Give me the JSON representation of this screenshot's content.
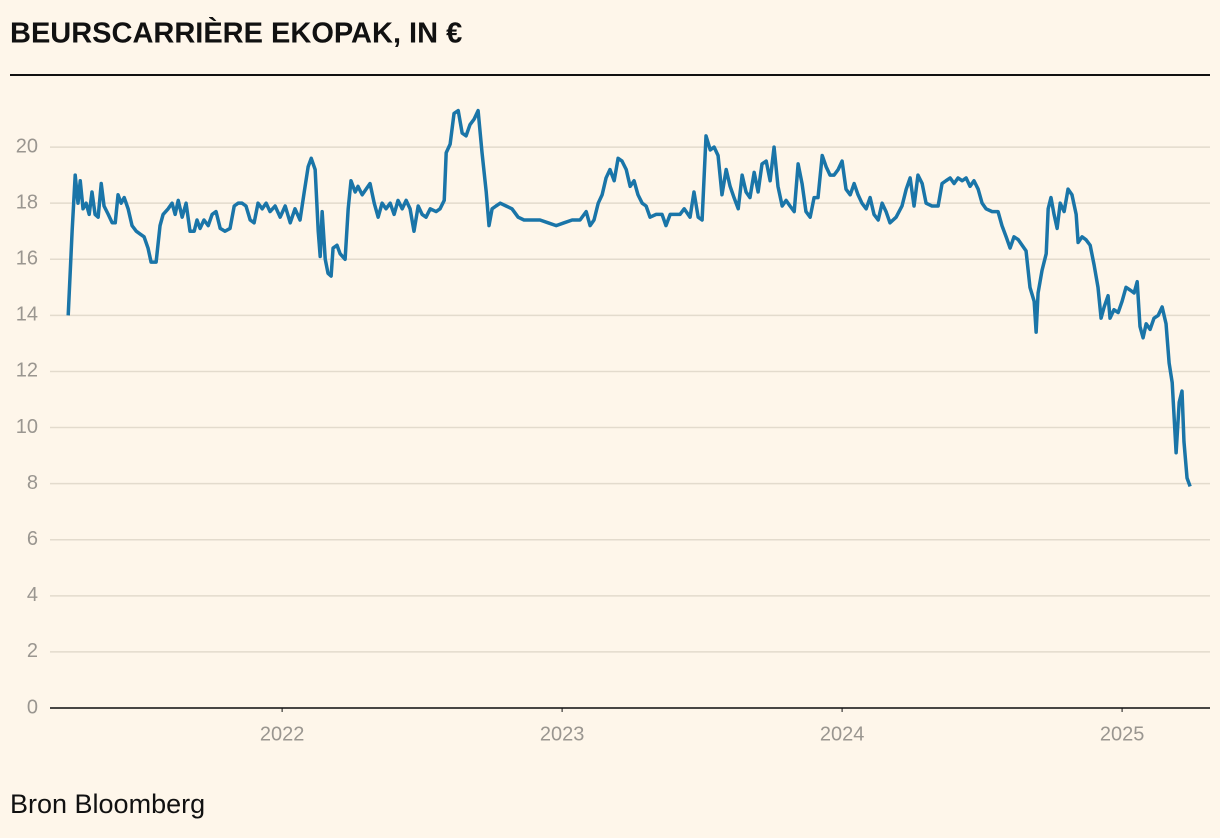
{
  "chart_data": {
    "type": "line",
    "title": "BEURSCARRIÈRE EKOPAK, IN €",
    "source": "Bron Bloomberg",
    "xlim": [
      2021.171,
      2025.314
    ],
    "xticks": [
      2022,
      2023,
      2024,
      2025
    ],
    "ylim": [
      0,
      22
    ],
    "yticks": [
      0,
      2,
      4,
      6,
      8,
      10,
      12,
      14,
      16,
      18,
      20
    ],
    "grid": true,
    "x": [
      2021.236,
      2021.25,
      2021.261,
      2021.271,
      2021.279,
      2021.289,
      2021.3,
      2021.311,
      2021.321,
      2021.332,
      2021.343,
      2021.354,
      2021.364,
      2021.379,
      2021.393,
      2021.404,
      2021.414,
      2021.425,
      2021.436,
      2021.45,
      2021.464,
      2021.479,
      2021.493,
      2021.507,
      2021.521,
      2021.532,
      2021.55,
      2021.564,
      2021.575,
      2021.593,
      2021.607,
      2021.618,
      2021.629,
      2021.643,
      2021.657,
      2021.671,
      2021.686,
      2021.696,
      2021.707,
      2021.721,
      2021.736,
      2021.75,
      2021.764,
      2021.779,
      2021.796,
      2021.814,
      2021.829,
      2021.843,
      2021.857,
      2021.871,
      2021.886,
      2021.9,
      2021.914,
      2021.929,
      2021.943,
      2021.957,
      2021.975,
      2021.993,
      2022.011,
      2022.029,
      2022.046,
      2022.064,
      2022.079,
      2022.093,
      2022.104,
      2022.118,
      2022.129,
      2022.136,
      2022.143,
      2022.154,
      2022.164,
      2022.175,
      2022.182,
      2022.196,
      2022.207,
      2022.225,
      2022.236,
      2022.246,
      2022.261,
      2022.271,
      2022.286,
      2022.3,
      2022.314,
      2022.329,
      2022.343,
      2022.357,
      2022.371,
      2022.386,
      2022.4,
      2022.414,
      2022.429,
      2022.443,
      2022.457,
      2022.471,
      2022.486,
      2022.5,
      2022.514,
      2022.529,
      2022.55,
      2022.564,
      2022.579,
      2022.586,
      2022.6,
      2022.614,
      2022.629,
      2022.643,
      2022.657,
      2022.671,
      2022.686,
      2022.7,
      2022.714,
      2022.729,
      2022.739,
      2022.75,
      2022.764,
      2022.779,
      2022.8,
      2022.821,
      2022.843,
      2022.864,
      2022.893,
      2022.921,
      2022.95,
      2022.979,
      2023.007,
      2023.036,
      2023.064,
      2023.086,
      2023.1,
      2023.114,
      2023.129,
      2023.143,
      2023.157,
      2023.171,
      2023.186,
      2023.2,
      2023.214,
      2023.229,
      2023.243,
      2023.257,
      2023.271,
      2023.286,
      2023.3,
      2023.314,
      2023.336,
      2023.357,
      2023.371,
      2023.386,
      2023.407,
      2023.421,
      2023.436,
      2023.457,
      2023.471,
      2023.486,
      2023.5,
      2023.514,
      2023.529,
      2023.543,
      2023.557,
      2023.571,
      2023.586,
      2023.6,
      2023.614,
      2023.629,
      2023.643,
      2023.657,
      2023.671,
      2023.686,
      2023.7,
      2023.714,
      2023.729,
      2023.743,
      2023.757,
      2023.771,
      2023.786,
      2023.8,
      2023.814,
      2023.829,
      2023.843,
      2023.857,
      2023.871,
      2023.886,
      2023.9,
      2023.914,
      2023.929,
      2023.943,
      2023.957,
      2023.971,
      2023.986,
      2024.0,
      2024.014,
      2024.029,
      2024.043,
      2024.057,
      2024.071,
      2024.086,
      2024.1,
      2024.114,
      2024.129,
      2024.143,
      2024.157,
      2024.171,
      2024.193,
      2024.214,
      2024.229,
      2024.243,
      2024.257,
      2024.271,
      2024.286,
      2024.3,
      2024.321,
      2024.343,
      2024.357,
      2024.371,
      2024.386,
      2024.4,
      2024.414,
      2024.429,
      2024.443,
      2024.457,
      2024.471,
      2024.486,
      2024.5,
      2024.514,
      2024.536,
      2024.557,
      2024.571,
      2024.586,
      2024.6,
      2024.614,
      2024.629,
      2024.643,
      2024.657,
      2024.671,
      2024.686,
      2024.693,
      2024.7,
      2024.714,
      2024.729,
      2024.736,
      2024.746,
      2024.757,
      2024.768,
      2024.779,
      2024.793,
      2024.807,
      2024.821,
      2024.836,
      2024.843,
      2024.857,
      2024.871,
      2024.886,
      2024.9,
      2024.914,
      2024.925,
      2024.936,
      2024.95,
      2024.957,
      2024.971,
      2024.986,
      2025.0,
      2025.014,
      2025.029,
      2025.043,
      2025.054,
      2025.064,
      2025.075,
      2025.086,
      2025.1,
      2025.114,
      2025.129,
      2025.143,
      2025.157,
      2025.168,
      2025.179,
      2025.193,
      2025.204,
      2025.214,
      2025.221,
      2025.232,
      2025.243
    ],
    "series": [
      {
        "color": "#1a75a8",
        "values": [
          14.0,
          17,
          19.0,
          18,
          18.8,
          17.8,
          18.0,
          17.6,
          18.4,
          17.6,
          17.5,
          18.7,
          17.9,
          17.6,
          17.3,
          17.3,
          18.3,
          18.0,
          18.2,
          17.8,
          17.2,
          17.0,
          16.9,
          16.8,
          16.4,
          15.9,
          15.9,
          17.2,
          17.6,
          17.8,
          18.0,
          17.6,
          18.1,
          17.5,
          18.0,
          17.0,
          17.0,
          17.4,
          17.1,
          17.4,
          17.2,
          17.6,
          17.7,
          17.1,
          17.0,
          17.1,
          17.9,
          18.0,
          18.0,
          17.9,
          17.4,
          17.3,
          18.0,
          17.8,
          18.0,
          17.7,
          17.9,
          17.5,
          17.9,
          17.3,
          17.8,
          17.4,
          18.4,
          19.3,
          19.6,
          19.2,
          17.0,
          16.1,
          17.7,
          16.0,
          15.5,
          15.4,
          16.4,
          16.5,
          16.2,
          16.0,
          17.8,
          18.8,
          18.4,
          18.6,
          18.3,
          18.5,
          18.7,
          18.0,
          17.5,
          18.0,
          17.8,
          18.0,
          17.6,
          18.1,
          17.8,
          18.1,
          17.8,
          17.0,
          17.9,
          17.6,
          17.5,
          17.8,
          17.7,
          17.8,
          18.1,
          19.8,
          20.1,
          21.2,
          21.3,
          20.5,
          20.4,
          20.8,
          21.0,
          21.3,
          19.8,
          18.4,
          17.2,
          17.8,
          17.9,
          18.0,
          17.9,
          17.8,
          17.5,
          17.4,
          17.4,
          17.4,
          17.3,
          17.2,
          17.3,
          17.4,
          17.4,
          17.7,
          17.2,
          17.4,
          18.0,
          18.3,
          18.9,
          19.2,
          18.8,
          19.6,
          19.5,
          19.2,
          18.6,
          18.8,
          18.3,
          18.0,
          17.9,
          17.5,
          17.6,
          17.6,
          17.2,
          17.6,
          17.6,
          17.6,
          17.8,
          17.5,
          18.4,
          17.5,
          17.4,
          20.4,
          19.9,
          20.0,
          19.7,
          18.3,
          19.2,
          18.6,
          18.2,
          17.8,
          19.0,
          18.4,
          18.2,
          19.1,
          18.4,
          19.4,
          19.5,
          18.8,
          20.0,
          18.6,
          17.9,
          18.1,
          17.9,
          17.7,
          19.4,
          18.7,
          17.7,
          17.5,
          18.2,
          18.2,
          19.7,
          19.3,
          19.0,
          19.0,
          19.2,
          19.5,
          18.5,
          18.3,
          18.7,
          18.3,
          18.0,
          17.8,
          18.2,
          17.6,
          17.4,
          18.0,
          17.7,
          17.3,
          17.5,
          17.9,
          18.5,
          18.9,
          17.9,
          19.0,
          18.7,
          18.0,
          17.9,
          17.9,
          18.7,
          18.8,
          18.9,
          18.7,
          18.9,
          18.8,
          18.9,
          18.6,
          18.8,
          18.5,
          18.0,
          17.8,
          17.7,
          17.7,
          17.2,
          16.8,
          16.4,
          16.8,
          16.7,
          16.5,
          16.3,
          15.0,
          14.5,
          13.4,
          14.8,
          15.6,
          16.2,
          17.8,
          18.2,
          17.6,
          17.1,
          18.0,
          17.7,
          18.5,
          18.3,
          17.6,
          16.6,
          16.8,
          16.7,
          16.5,
          15.8,
          15.0,
          13.9,
          14.3,
          14.7,
          13.9,
          14.2,
          14.1,
          14.5,
          15.0,
          14.9,
          14.8,
          15.2,
          13.6,
          13.2,
          13.7,
          13.5,
          13.9,
          14.0,
          14.3,
          13.7,
          12.3,
          11.6,
          9.1,
          10.9,
          11.3,
          9.5,
          8.2,
          7.9
        ]
      }
    ]
  }
}
